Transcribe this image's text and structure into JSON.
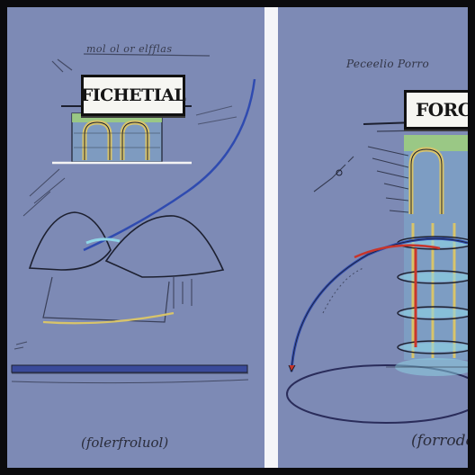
{
  "left_panel": {
    "header_scribble": "mol ol or elfflas",
    "sign_text": "FICHETIAL",
    "caption": "(folerfroluol)"
  },
  "right_panel": {
    "header_scribble": "Peceelio Porro",
    "sign_text": "FORCE",
    "caption": "(forrodo)"
  },
  "colors": {
    "background": "#7d8ab5",
    "frame": "#0b0b0d",
    "divider": "#f4f5f8",
    "ink": "#1d2030",
    "blue_wire": "#2f4bb0",
    "red_wire": "#c8352b",
    "coil_yellow": "#d8c46a",
    "green_band": "#9fd07a",
    "cyan_glow": "#8fd6e6"
  }
}
